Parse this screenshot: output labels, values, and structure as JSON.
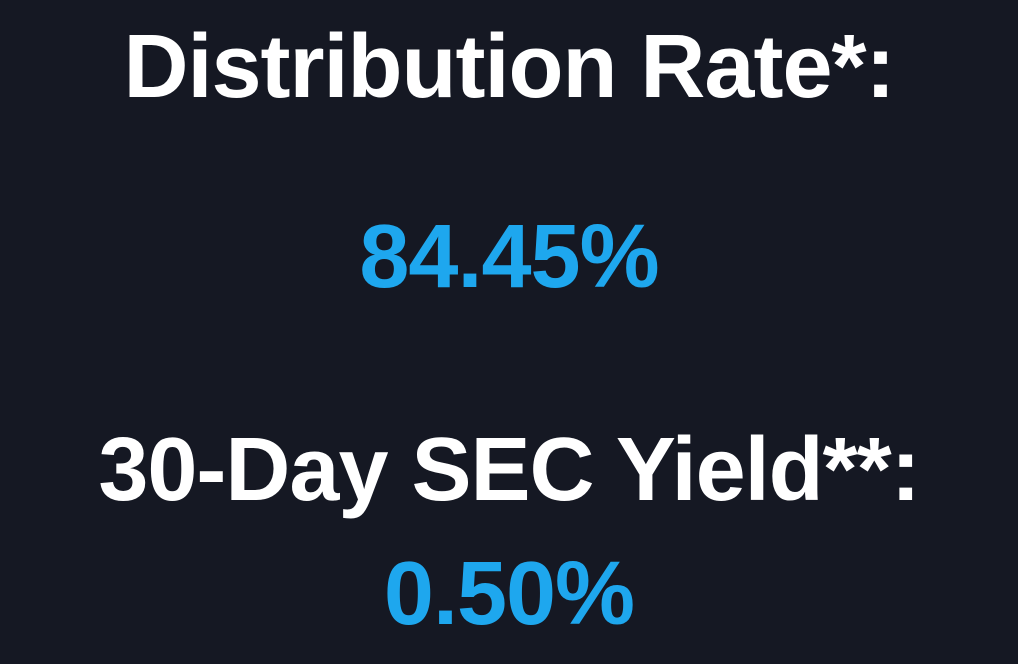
{
  "distribution_rate": {
    "label": "Distribution Rate*:",
    "value": "84.45%"
  },
  "sec_yield": {
    "label": "30-Day SEC Yield**:",
    "value": "0.50%"
  },
  "colors": {
    "background": "#151823",
    "label": "#ffffff",
    "value": "#1ea7ee"
  }
}
